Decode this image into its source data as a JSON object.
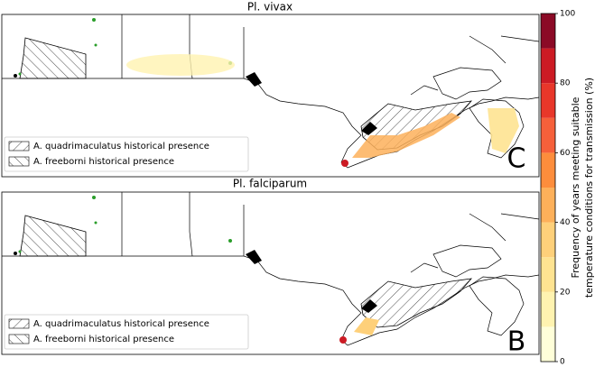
{
  "panels": [
    {
      "title": "Pl. vivax",
      "letter": "C",
      "legend": [
        "A. quadrimaculatus historical presence",
        "A. freeborni historical presence"
      ]
    },
    {
      "title": "Pl. falciparum",
      "letter": "B",
      "legend": [
        "A. quadrimaculatus historical presence",
        "A. freeborni historical presence"
      ]
    }
  ],
  "colorbar": {
    "label_lines": [
      "Frequency of years meeting suitable",
      "temperature conditions for transmission (%)"
    ],
    "lim": [
      0,
      100
    ],
    "ticks": [
      0,
      20,
      40,
      60,
      80,
      100
    ],
    "bins": [
      0,
      10,
      20,
      30,
      40,
      50,
      60,
      70,
      80,
      90,
      100
    ],
    "colors": [
      "#ffffd9",
      "#fff3b0",
      "#fee391",
      "#fed07a",
      "#fdb05a",
      "#fd8d3c",
      "#f6603a",
      "#e8372a",
      "#cc1b24",
      "#8b0a26"
    ]
  }
}
